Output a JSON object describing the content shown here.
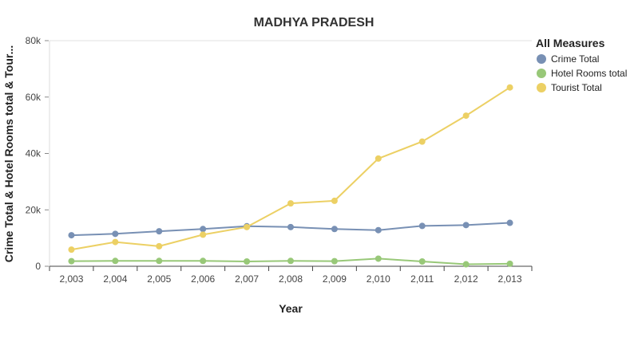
{
  "chart_data": {
    "type": "line",
    "title": "MADHYA PRADESH",
    "xlabel": "Year",
    "ylabel": "Crime Total & Hotel Rooms total & Tour...",
    "x": [
      "2,003",
      "2,004",
      "2,005",
      "2,006",
      "2,007",
      "2,008",
      "2,009",
      "2,010",
      "2,011",
      "2,012",
      "2,013"
    ],
    "ylim": [
      0,
      80000
    ],
    "y_ticks": [
      0,
      20000,
      40000,
      60000,
      80000
    ],
    "y_tick_labels": [
      "0",
      "20k",
      "40k",
      "60k",
      "80k"
    ],
    "grid": "horizontal-top-only",
    "legend": {
      "title": "All Measures",
      "position": "top-right"
    },
    "series": [
      {
        "name": "Crime Total",
        "color": "#7890b4",
        "values": [
          11000,
          11500,
          12400,
          13200,
          14200,
          13900,
          13200,
          12800,
          14300,
          14600,
          15400
        ]
      },
      {
        "name": "Hotel Rooms total",
        "color": "#98c878",
        "values": [
          1800,
          1900,
          1900,
          1900,
          1700,
          1900,
          1800,
          2700,
          1700,
          700,
          900
        ]
      },
      {
        "name": "Tourist Total",
        "color": "#ecd064",
        "values": [
          5900,
          8600,
          7100,
          11200,
          13900,
          22300,
          23200,
          38200,
          44200,
          53400,
          63400
        ]
      }
    ]
  }
}
